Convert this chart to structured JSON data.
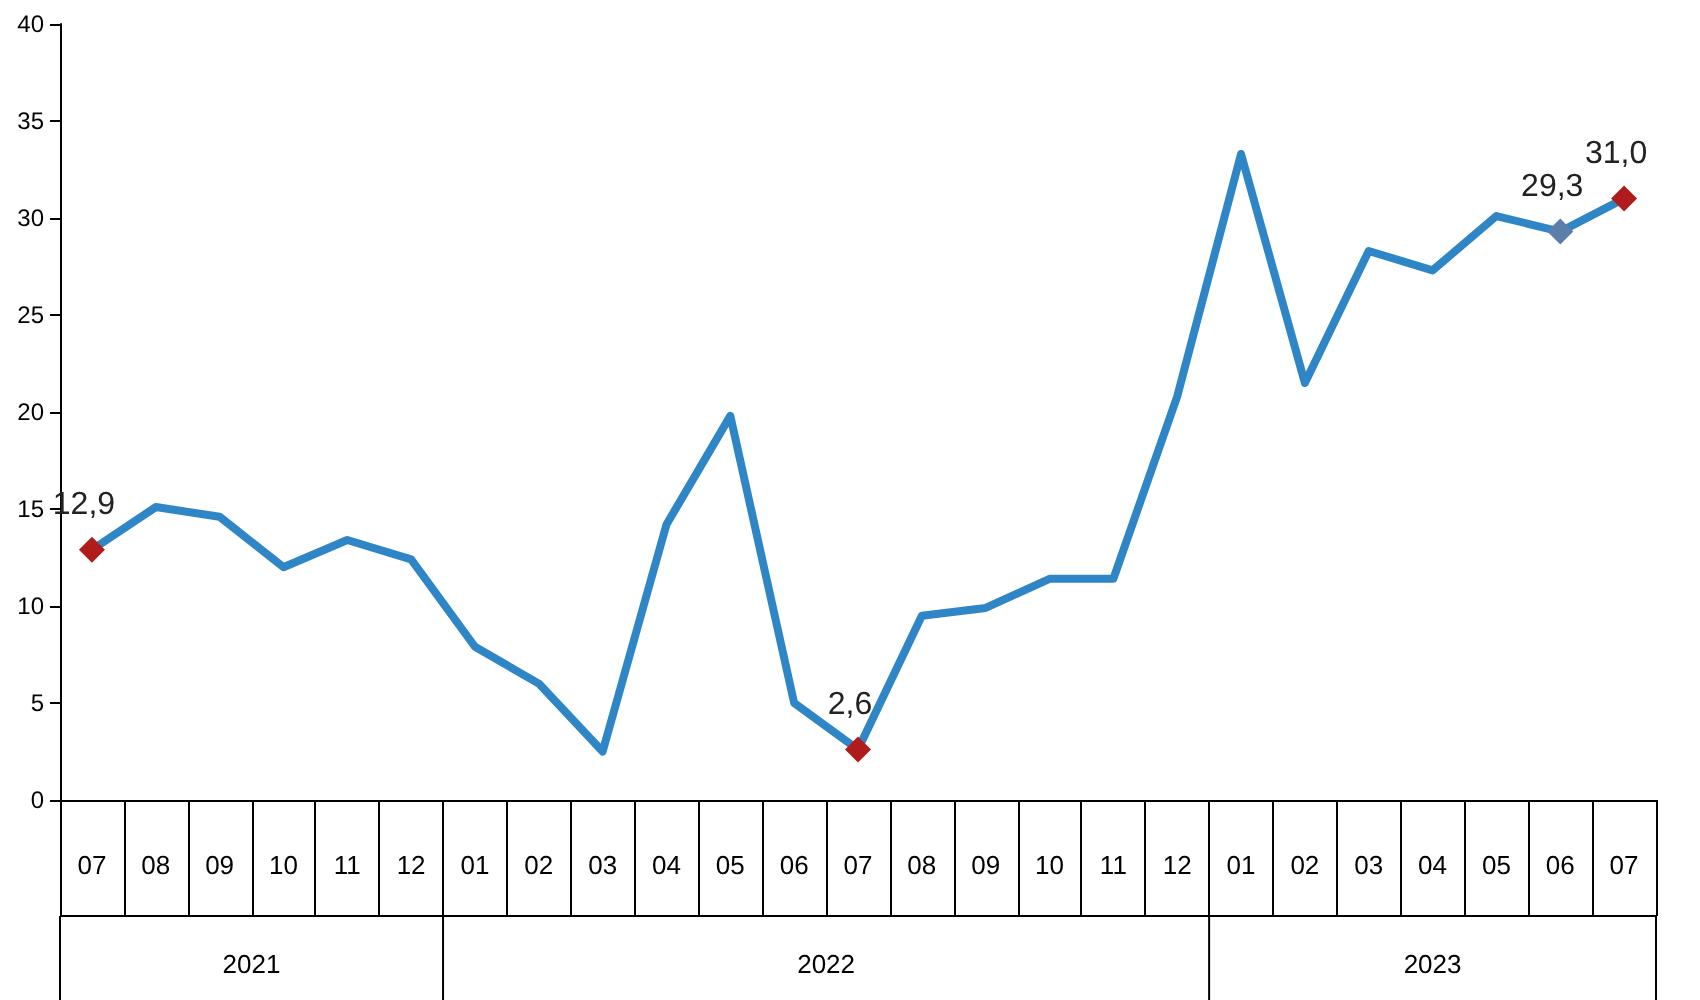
{
  "chart_data": {
    "type": "line",
    "categories": [
      "07",
      "08",
      "09",
      "10",
      "11",
      "12",
      "01",
      "02",
      "03",
      "04",
      "05",
      "06",
      "07",
      "08",
      "09",
      "10",
      "11",
      "12",
      "01",
      "02",
      "03",
      "04",
      "05",
      "06",
      "07"
    ],
    "annotations": [
      "2021",
      "2022",
      "2023"
    ],
    "values": [
      12.9,
      15.1,
      14.6,
      12.0,
      13.4,
      12.4,
      7.9,
      6.0,
      2.5,
      14.2,
      19.8,
      5.0,
      2.6,
      9.5,
      9.9,
      11.4,
      11.4,
      20.8,
      33.3,
      21.5,
      28.3,
      27.3,
      30.1,
      29.3,
      31.0
    ],
    "value_labels": [
      "12,9",
      null,
      null,
      null,
      null,
      null,
      null,
      null,
      null,
      null,
      null,
      null,
      "2,6",
      null,
      null,
      null,
      null,
      null,
      null,
      null,
      null,
      null,
      null,
      "29,3",
      "31,0"
    ],
    "color": "#2f86c6",
    "colors": [
      "#b01c1c",
      null,
      null,
      null,
      null,
      null,
      null,
      null,
      null,
      null,
      null,
      null,
      "#b01c1c",
      null,
      null,
      null,
      null,
      null,
      null,
      null,
      null,
      null,
      null,
      "#5b7fa8",
      "#b01c1c"
    ],
    "line_style": "solid",
    "ylim": [
      0,
      40
    ],
    "yticks": [
      0,
      5,
      10,
      15,
      20,
      25,
      30,
      35,
      40
    ],
    "grid": false
  }
}
